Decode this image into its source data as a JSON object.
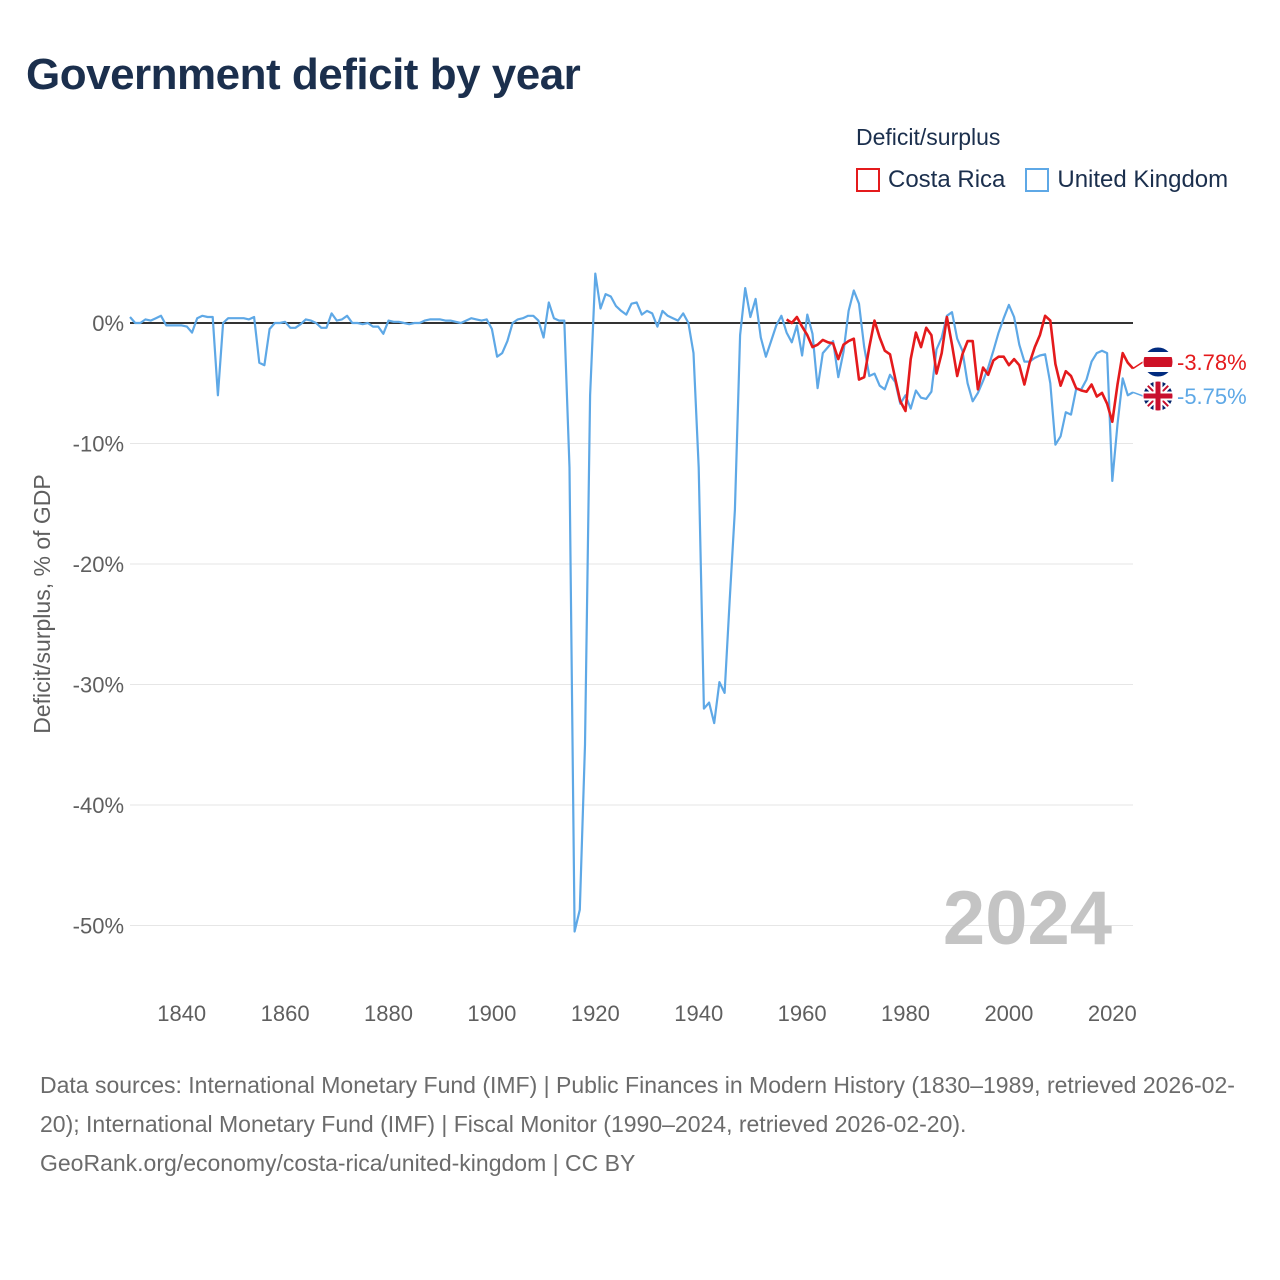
{
  "title": "Government deficit by year",
  "legend": {
    "title": "Deficit/surplus",
    "items": [
      {
        "name": "Costa Rica",
        "color": "#e41a1c"
      },
      {
        "name": "United Kingdom",
        "color": "#5ea8e6"
      }
    ]
  },
  "footer": {
    "sources": "Data sources: International Monetary Fund (IMF) | Public Finances in Modern History (1830–1989, retrieved 2026-02-20); International Monetary Fund (IMF) | Fiscal Monitor (1990–2024, retrieved 2026-02-20).",
    "credit": "GeoRank.org/economy/costa-rica/united-kingdom | CC BY"
  },
  "chart_data": {
    "type": "line",
    "title": "Government deficit by year",
    "xlabel": "",
    "ylabel": "Deficit/surplus, % of GDP",
    "xlim": [
      1830,
      2024
    ],
    "ylim": [
      -54,
      4.5
    ],
    "x_ticks": [
      1840,
      1860,
      1880,
      1900,
      1920,
      1940,
      1960,
      1980,
      2000,
      2020
    ],
    "y_ticks": [
      0,
      -10,
      -20,
      -30,
      -40,
      -50
    ],
    "y_tick_labels": [
      "0%",
      "-10%",
      "-20%",
      "-30%",
      "-40%",
      "-50%"
    ],
    "grid": true,
    "year_label": "2024",
    "end_labels": {
      "Costa Rica": "-3.78%",
      "United Kingdom": "-5.75%"
    },
    "series": [
      {
        "name": "Costa Rica",
        "color": "#e41a1c",
        "x": [
          1957,
          1958,
          1959,
          1960,
          1961,
          1962,
          1963,
          1964,
          1965,
          1966,
          1967,
          1968,
          1969,
          1970,
          1971,
          1972,
          1973,
          1974,
          1975,
          1976,
          1977,
          1978,
          1979,
          1980,
          1981,
          1982,
          1983,
          1984,
          1985,
          1986,
          1987,
          1988,
          1989,
          1990,
          1991,
          1992,
          1993,
          1994,
          1995,
          1996,
          1997,
          1998,
          1999,
          2000,
          2001,
          2002,
          2003,
          2004,
          2005,
          2006,
          2007,
          2008,
          2009,
          2010,
          2011,
          2012,
          2013,
          2014,
          2015,
          2016,
          2017,
          2018,
          2019,
          2020,
          2021,
          2022,
          2023,
          2024
        ],
        "y": [
          0.3,
          0.0,
          0.5,
          -0.3,
          -1.0,
          -2.0,
          -1.8,
          -1.4,
          -1.6,
          -1.7,
          -3.0,
          -1.8,
          -1.5,
          -1.3,
          -4.7,
          -4.5,
          -2.0,
          0.2,
          -1.2,
          -2.3,
          -2.6,
          -4.6,
          -6.5,
          -7.3,
          -3.0,
          -0.8,
          -2.0,
          -0.4,
          -1.0,
          -4.2,
          -2.5,
          0.5,
          -1.8,
          -4.4,
          -2.6,
          -1.5,
          -1.5,
          -5.5,
          -3.7,
          -4.3,
          -3.1,
          -2.8,
          -2.8,
          -3.5,
          -3.0,
          -3.5,
          -5.1,
          -3.3,
          -2.0,
          -1.0,
          0.6,
          0.2,
          -3.4,
          -5.2,
          -4.0,
          -4.4,
          -5.4,
          -5.6,
          -5.7,
          -5.1,
          -6.1,
          -5.8,
          -6.7,
          -8.2,
          -5.1,
          -2.5,
          -3.3,
          -3.78
        ]
      },
      {
        "name": "United Kingdom",
        "color": "#5ea8e6",
        "x": [
          1830,
          1831,
          1832,
          1833,
          1834,
          1835,
          1836,
          1837,
          1838,
          1839,
          1840,
          1841,
          1842,
          1843,
          1844,
          1845,
          1846,
          1847,
          1848,
          1849,
          1850,
          1851,
          1852,
          1853,
          1854,
          1855,
          1856,
          1857,
          1858,
          1859,
          1860,
          1861,
          1862,
          1863,
          1864,
          1865,
          1866,
          1867,
          1868,
          1869,
          1870,
          1871,
          1872,
          1873,
          1874,
          1875,
          1876,
          1877,
          1878,
          1879,
          1880,
          1881,
          1882,
          1883,
          1884,
          1885,
          1886,
          1887,
          1888,
          1889,
          1890,
          1891,
          1892,
          1893,
          1894,
          1895,
          1896,
          1897,
          1898,
          1899,
          1900,
          1901,
          1902,
          1903,
          1904,
          1905,
          1906,
          1907,
          1908,
          1909,
          1910,
          1911,
          1912,
          1913,
          1914,
          1915,
          1916,
          1917,
          1918,
          1919,
          1920,
          1921,
          1922,
          1923,
          1924,
          1925,
          1926,
          1927,
          1928,
          1929,
          1930,
          1931,
          1932,
          1933,
          1934,
          1935,
          1936,
          1937,
          1938,
          1939,
          1940,
          1941,
          1942,
          1943,
          1944,
          1945,
          1946,
          1947,
          1948,
          1949,
          1950,
          1951,
          1952,
          1953,
          1954,
          1955,
          1956,
          1957,
          1958,
          1959,
          1960,
          1961,
          1962,
          1963,
          1964,
          1965,
          1966,
          1967,
          1968,
          1969,
          1970,
          1971,
          1972,
          1973,
          1974,
          1975,
          1976,
          1977,
          1978,
          1979,
          1980,
          1981,
          1982,
          1983,
          1984,
          1985,
          1986,
          1987,
          1988,
          1989,
          1990,
          1991,
          1992,
          1993,
          1994,
          1995,
          1996,
          1997,
          1998,
          1999,
          2000,
          2001,
          2002,
          2003,
          2004,
          2005,
          2006,
          2007,
          2008,
          2009,
          2010,
          2011,
          2012,
          2013,
          2014,
          2015,
          2016,
          2017,
          2018,
          2019,
          2020,
          2021,
          2022,
          2023,
          2024
        ],
        "y": [
          0.5,
          0.0,
          0.0,
          0.3,
          0.2,
          0.4,
          0.6,
          -0.2,
          -0.2,
          -0.2,
          -0.2,
          -0.3,
          -0.8,
          0.4,
          0.6,
          0.5,
          0.5,
          -6.0,
          0.0,
          0.4,
          0.4,
          0.4,
          0.4,
          0.3,
          0.5,
          -3.3,
          -3.5,
          -0.5,
          0.0,
          0.0,
          0.1,
          -0.4,
          -0.4,
          -0.1,
          0.3,
          0.2,
          0.0,
          -0.4,
          -0.4,
          0.8,
          0.2,
          0.3,
          0.6,
          0.0,
          0.0,
          -0.1,
          0.0,
          -0.3,
          -0.3,
          -0.9,
          0.2,
          0.1,
          0.1,
          0.0,
          -0.1,
          0.0,
          0.0,
          0.2,
          0.3,
          0.3,
          0.3,
          0.2,
          0.2,
          0.1,
          0.0,
          0.2,
          0.4,
          0.3,
          0.2,
          0.3,
          -0.5,
          -2.8,
          -2.5,
          -1.5,
          0.0,
          0.3,
          0.4,
          0.6,
          0.6,
          0.2,
          -1.2,
          1.7,
          0.4,
          0.2,
          0.2,
          -12.0,
          -50.5,
          -48.7,
          -35.0,
          -6.0,
          4.1,
          1.2,
          2.4,
          2.2,
          1.4,
          1.0,
          0.7,
          1.6,
          1.7,
          0.7,
          1.0,
          0.8,
          -0.3,
          1.0,
          0.6,
          0.4,
          0.2,
          0.8,
          0.0,
          -2.5,
          -12.0,
          -32.0,
          -31.5,
          -33.2,
          -29.8,
          -30.7,
          -23.0,
          -15.5,
          -1.0,
          2.9,
          0.5,
          2.0,
          -1.2,
          -2.8,
          -1.5,
          -0.2,
          0.6,
          -0.8,
          -1.6,
          -0.2,
          -2.7,
          0.7,
          -0.9,
          -5.4,
          -2.5,
          -2.0,
          -1.5,
          -4.5,
          -2.4,
          1.0,
          2.7,
          1.6,
          -2.0,
          -4.4,
          -4.2,
          -5.2,
          -5.5,
          -4.3,
          -4.9,
          -6.7,
          -6.0,
          -7.1,
          -5.6,
          -6.2,
          -6.3,
          -5.7,
          -2.2,
          -1.2,
          0.6,
          0.9,
          -1.3,
          -2.3,
          -5.0,
          -6.5,
          -5.8,
          -4.8,
          -3.7,
          -2.3,
          -0.8,
          0.4,
          1.5,
          0.5,
          -1.8,
          -3.2,
          -3.2,
          -2.9,
          -2.7,
          -2.6,
          -5.0,
          -10.1,
          -9.4,
          -7.4,
          -7.6,
          -5.5,
          -5.5,
          -4.7,
          -3.2,
          -2.5,
          -2.3,
          -2.5,
          -13.1,
          -8.4,
          -4.6,
          -6.0,
          -5.75
        ]
      }
    ]
  }
}
